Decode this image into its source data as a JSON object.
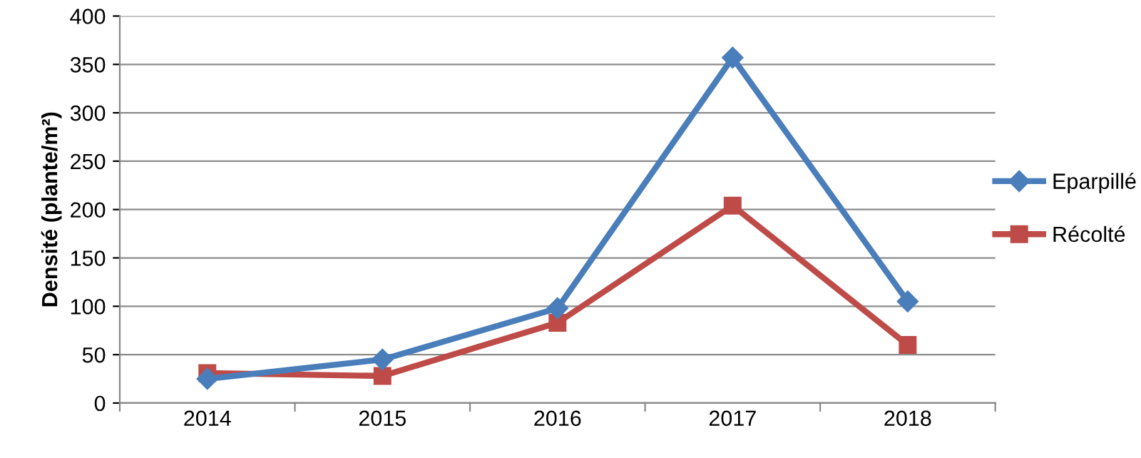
{
  "chart_data": {
    "type": "line",
    "ylabel": "Densité (plante/m²)",
    "categories": [
      "2014",
      "2015",
      "2016",
      "2017",
      "2018"
    ],
    "series": [
      {
        "name": "Eparpillé",
        "color": "#4a7ebb",
        "values": [
          25,
          45,
          98,
          357,
          105
        ],
        "marker": "diamond"
      },
      {
        "name": "Récolté",
        "color": "#be4b48",
        "values": [
          31,
          28,
          83,
          204,
          60
        ],
        "marker": "square"
      }
    ],
    "ylim": [
      0,
      400
    ],
    "yticks": [
      0,
      50,
      100,
      150,
      200,
      250,
      300,
      350,
      400
    ],
    "grid": "y",
    "legend": "right",
    "line_style": "solid"
  }
}
